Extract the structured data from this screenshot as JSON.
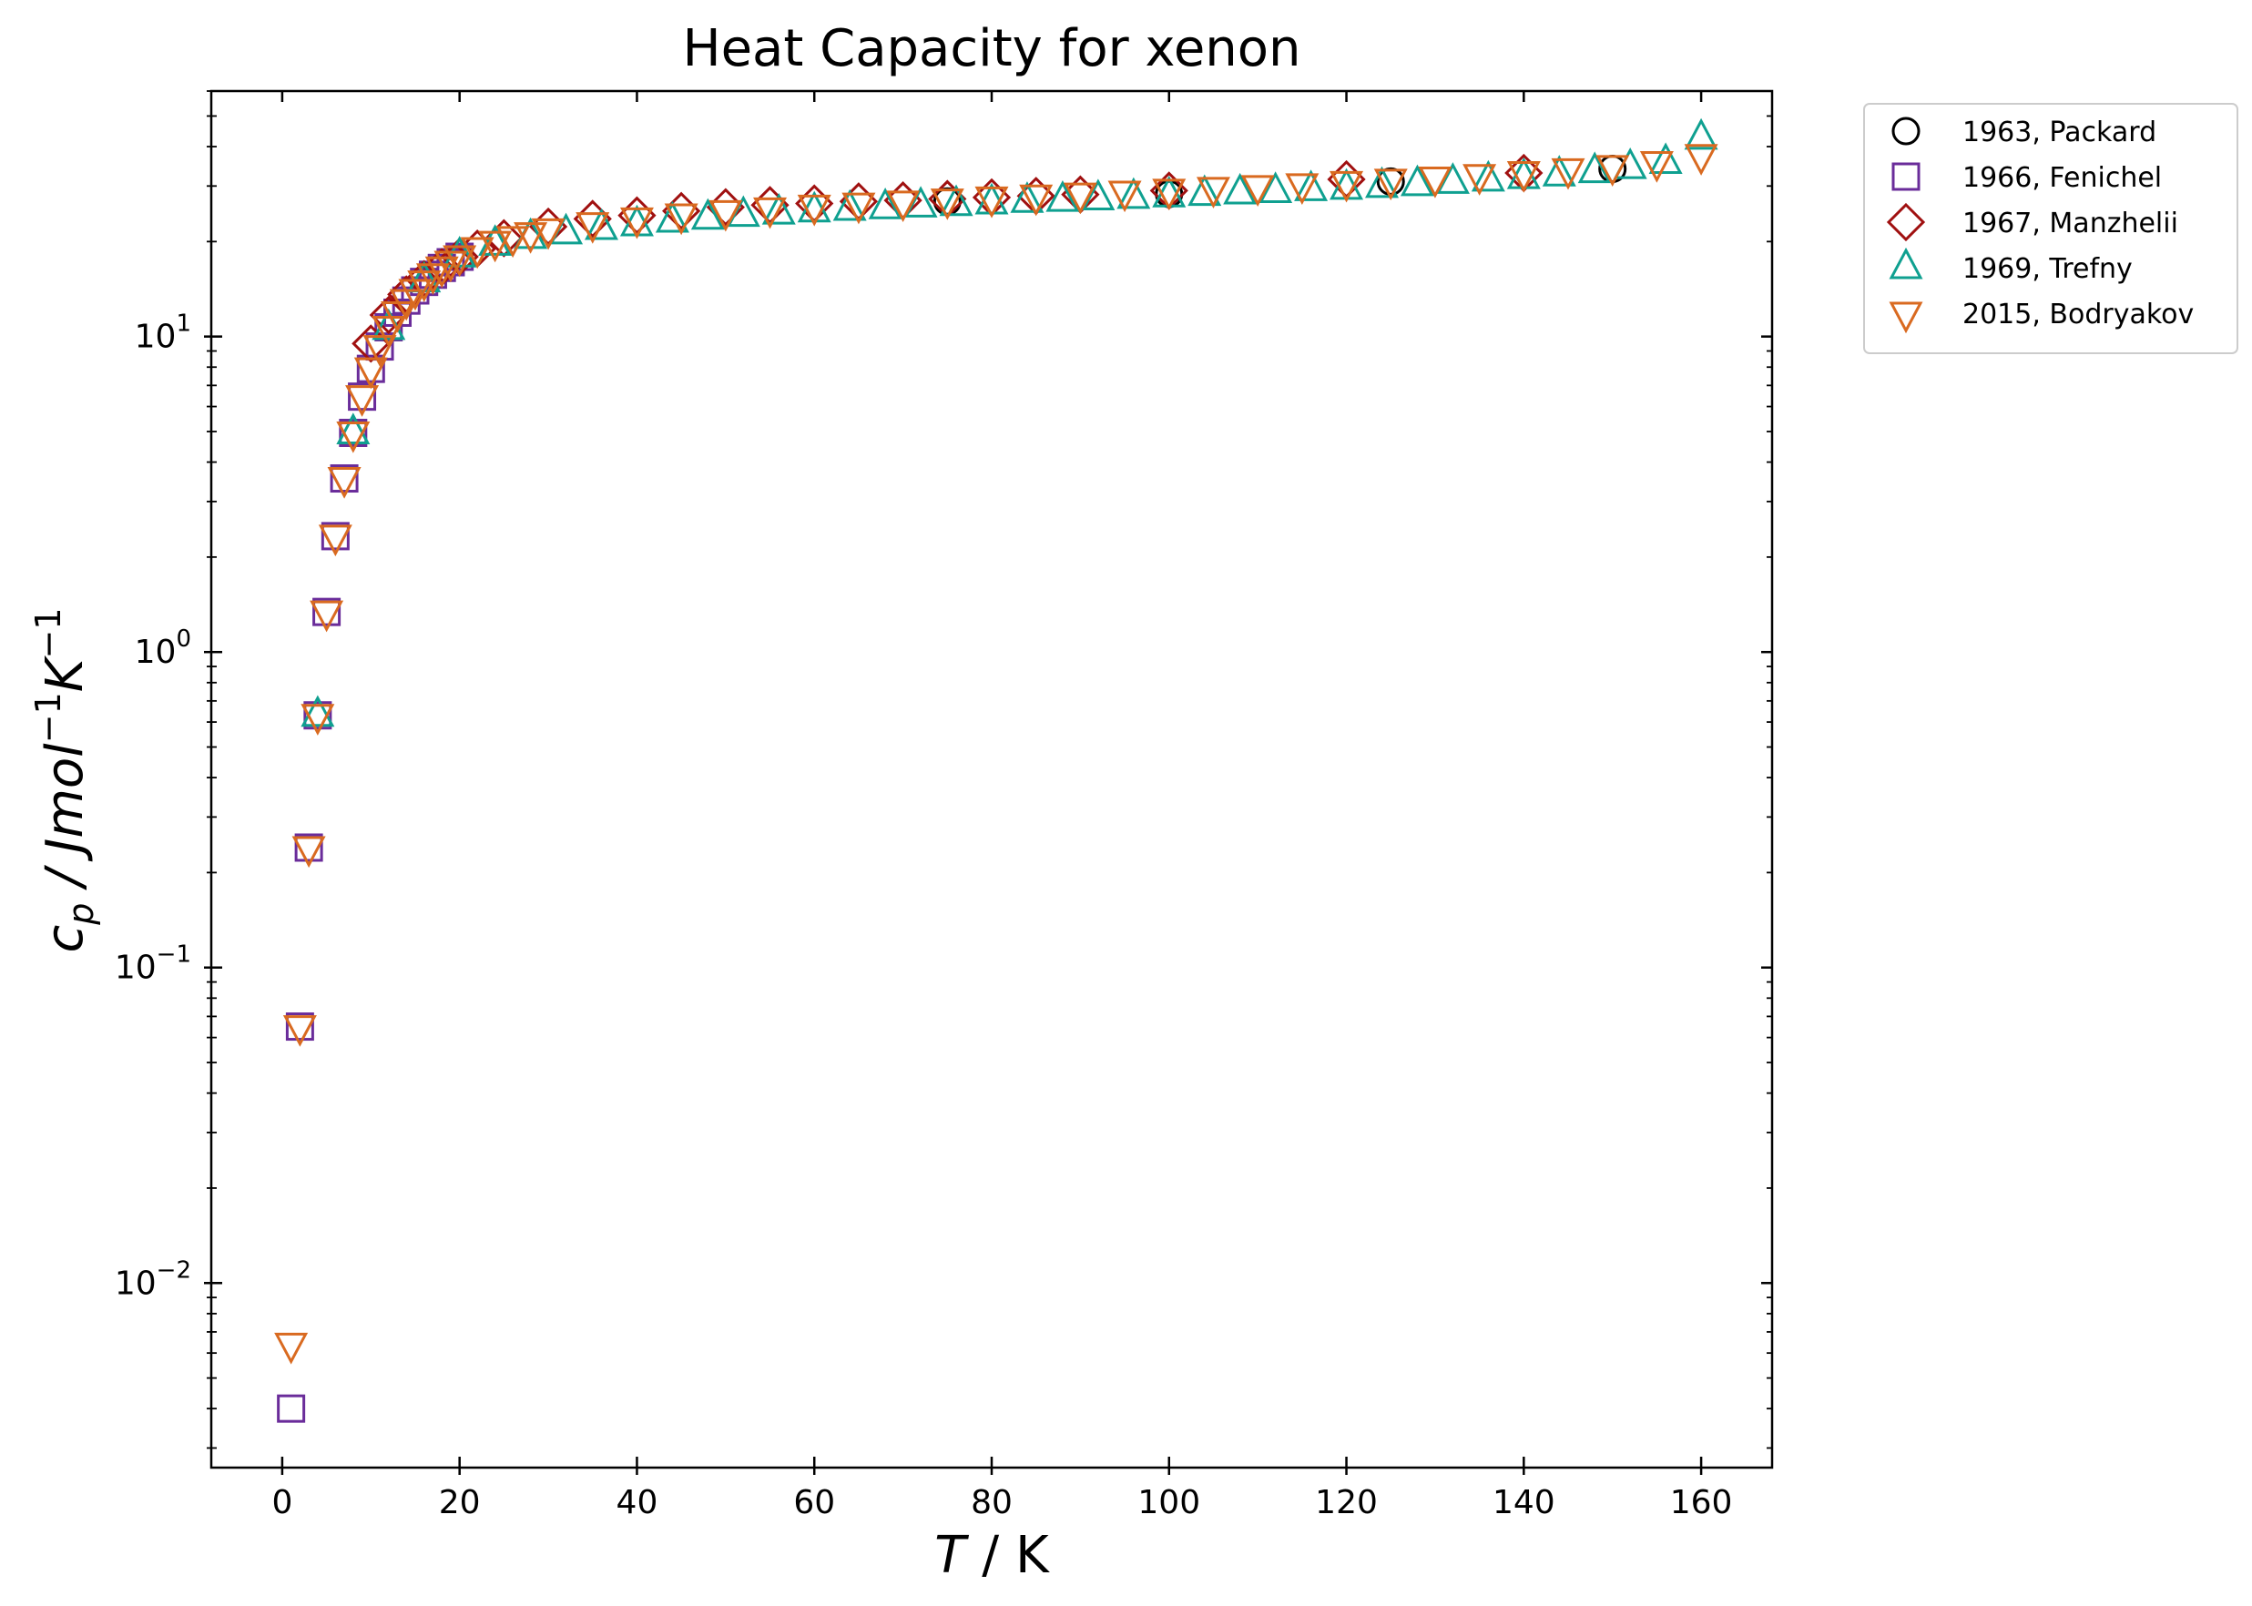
{
  "chart_data": {
    "type": "scatter",
    "title": "Heat Capacity for xenon",
    "xlabel": {
      "var": "T",
      "unit": " / K"
    },
    "ylabel": {
      "var": "c",
      "sub": "p",
      "unit": " / Jmol",
      "exp1": "−1",
      "unit2": "K",
      "exp2": "−1"
    },
    "xlim": [
      -8,
      168
    ],
    "ylim": [
      0.0026,
      60
    ],
    "yscale": "log",
    "x_ticks": [
      0,
      20,
      40,
      60,
      80,
      100,
      120,
      140,
      160
    ],
    "y_ticks": [
      {
        "value": 0.01,
        "base": "10",
        "exp": "−2"
      },
      {
        "value": 0.1,
        "base": "10",
        "exp": "−1"
      },
      {
        "value": 1,
        "base": "10",
        "exp": "0"
      },
      {
        "value": 10,
        "base": "10",
        "exp": "1"
      }
    ],
    "grid": false,
    "legend_position": "outside top-right",
    "series": [
      {
        "name": "1963, Packard",
        "marker": "circle",
        "color": "#000000",
        "x": [
          75,
          100,
          125,
          150
        ],
        "y": [
          26.8,
          28.3,
          31.0,
          34.0
        ]
      },
      {
        "name": "1966, Fenichel",
        "marker": "square",
        "color": "#6a2c9a",
        "x": [
          1,
          2,
          3,
          4,
          5,
          6,
          7,
          8,
          9,
          10,
          11,
          12,
          13,
          14,
          15,
          16,
          17,
          18,
          19,
          20
        ],
        "y": [
          0.004,
          0.065,
          0.24,
          0.63,
          1.34,
          2.33,
          3.55,
          4.95,
          6.45,
          7.9,
          9.3,
          10.7,
          11.9,
          13.0,
          14.0,
          14.9,
          15.7,
          16.5,
          17.2,
          17.9
        ]
      },
      {
        "name": "1967, Manzhelii",
        "marker": "diamond",
        "color": "#a01010",
        "x": [
          10,
          12,
          14,
          16,
          18,
          20,
          22,
          25,
          30,
          35,
          40,
          45,
          50,
          55,
          60,
          65,
          70,
          75,
          80,
          85,
          90,
          100,
          120,
          140
        ],
        "y": [
          9.5,
          11.7,
          13.6,
          15.2,
          16.6,
          17.9,
          19.0,
          20.5,
          22.3,
          23.6,
          24.2,
          25.0,
          25.7,
          26.1,
          26.4,
          26.8,
          27.0,
          27.3,
          27.6,
          27.9,
          28.2,
          29.0,
          31.5,
          33.0
        ]
      },
      {
        "name": "1969, Trefny",
        "marker": "triangle-up",
        "color": "#0fa090",
        "x": [
          4,
          8,
          12,
          16,
          20,
          24,
          28,
          32,
          36,
          40,
          44,
          48,
          52,
          56,
          60,
          64,
          68,
          72,
          76,
          80,
          84,
          88,
          92,
          96,
          100,
          104,
          108,
          112,
          116,
          120,
          124,
          128,
          132,
          136,
          140,
          144,
          148,
          152,
          156,
          160
        ],
        "y": [
          0.63,
          4.95,
          10.6,
          15.0,
          18.0,
          19.6,
          20.6,
          21.3,
          22.0,
          22.6,
          23.2,
          23.7,
          24.2,
          24.6,
          25.0,
          25.3,
          25.6,
          25.9,
          26.2,
          26.5,
          26.8,
          27.0,
          27.3,
          27.6,
          27.9,
          28.2,
          28.5,
          28.8,
          29.2,
          29.5,
          29.9,
          30.3,
          30.8,
          31.3,
          31.9,
          32.5,
          33.3,
          34.3,
          35.6,
          42.5
        ]
      },
      {
        "name": "2015, Bodryakov",
        "marker": "triangle-down",
        "color": "#d96a20",
        "x": [
          1,
          2,
          3,
          4,
          5,
          6,
          7,
          8,
          9,
          10,
          11,
          12,
          13,
          14,
          15,
          16,
          17,
          18,
          19,
          20,
          22,
          24,
          26,
          28,
          30,
          35,
          40,
          45,
          50,
          55,
          60,
          65,
          70,
          75,
          80,
          85,
          90,
          95,
          100,
          105,
          110,
          115,
          120,
          125,
          130,
          135,
          140,
          145,
          150,
          155,
          160
        ],
        "y": [
          0.0064,
          0.065,
          0.24,
          0.63,
          1.34,
          2.33,
          3.55,
          4.95,
          6.45,
          7.9,
          9.3,
          10.7,
          11.9,
          13.0,
          14.0,
          14.9,
          15.7,
          16.5,
          17.2,
          17.9,
          19.0,
          19.9,
          20.6,
          21.2,
          21.8,
          22.8,
          23.6,
          24.3,
          24.9,
          25.4,
          25.9,
          26.3,
          26.7,
          27.1,
          27.5,
          27.9,
          28.3,
          28.7,
          29.1,
          29.5,
          29.9,
          30.3,
          30.8,
          31.3,
          31.8,
          32.4,
          33.1,
          33.8,
          34.6,
          35.6,
          37.5
        ]
      }
    ]
  }
}
